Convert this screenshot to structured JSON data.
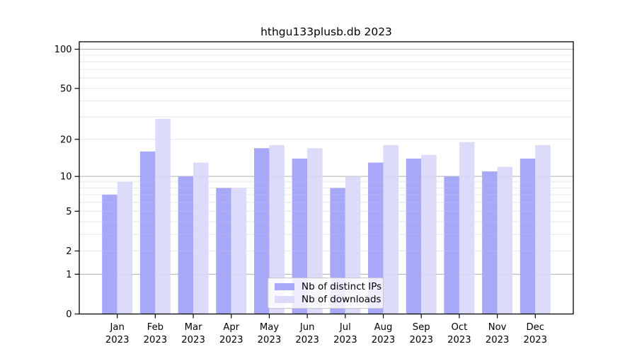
{
  "chart_data": {
    "type": "bar",
    "title": "hthgu133plusb.db 2023",
    "categories": [
      "Jan",
      "Feb",
      "Mar",
      "Apr",
      "May",
      "Jun",
      "Jul",
      "Aug",
      "Sep",
      "Oct",
      "Nov",
      "Dec"
    ],
    "category_year": "2023",
    "series": [
      {
        "name": "Nb of distinct IPs",
        "color": "#a8a8f8",
        "values": [
          7,
          16,
          10,
          8,
          17,
          14,
          8,
          13,
          14,
          10,
          11,
          14
        ]
      },
      {
        "name": "Nb of downloads",
        "color": "#dcdcfa",
        "values": [
          9,
          29,
          13,
          8,
          18,
          17,
          10,
          18,
          15,
          19,
          12,
          18
        ]
      }
    ],
    "yscale": "log1p",
    "ylim": [
      0,
      114
    ],
    "ytick_labels": [
      0,
      1,
      2,
      5,
      10,
      20,
      50,
      100
    ],
    "grid_major": [
      1,
      10,
      100
    ],
    "grid_minor": [
      2,
      3,
      4,
      5,
      6,
      7,
      8,
      9,
      20,
      30,
      40,
      50,
      60,
      70,
      80,
      90
    ],
    "legend_position": "lower center",
    "grid_on": true,
    "colors": {
      "grid_major": "#b3b3b3",
      "grid_minor": "#e8e8e8",
      "frame": "#000000",
      "tick_label": "#000000",
      "background": "#ffffff"
    }
  }
}
